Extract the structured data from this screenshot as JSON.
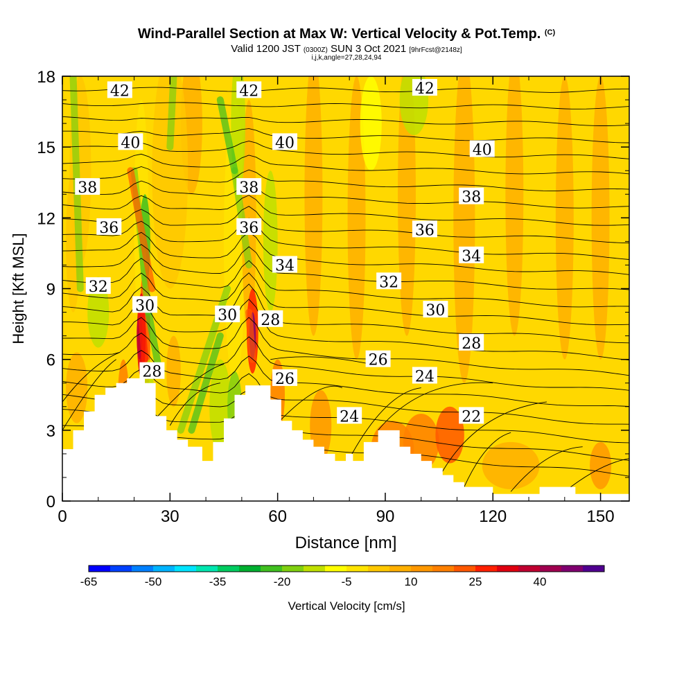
{
  "header": {
    "title": "Wind-Parallel Section at Max W: Vertical Velocity & Pot.Temp.",
    "copyright": "(C)",
    "valid_prefix": "Valid 1200 JST",
    "valid_utc": "(0300Z)",
    "valid_date": "SUN 3 Oct 2021",
    "forecast": "[9hrFcst@2148z]",
    "grid_info": "i,j,k,angle=27,28,24,94"
  },
  "chart_data": {
    "type": "heatmap",
    "xlabel": "Distance [nm]",
    "ylabel": "Height [Kft MSL]",
    "xlim": [
      0,
      158
    ],
    "ylim": [
      0,
      18
    ],
    "x_ticks": [
      0,
      30,
      60,
      90,
      120,
      150
    ],
    "y_ticks": [
      0,
      3,
      6,
      9,
      12,
      15,
      18
    ],
    "terrain_kft": [
      [
        0,
        2.2
      ],
      [
        3,
        2.2
      ],
      [
        3,
        3.0
      ],
      [
        6,
        3.0
      ],
      [
        6,
        3.8
      ],
      [
        9,
        3.8
      ],
      [
        9,
        4.5
      ],
      [
        12,
        4.5
      ],
      [
        12,
        4.8
      ],
      [
        15,
        4.8
      ],
      [
        15,
        5.0
      ],
      [
        18,
        5.0
      ],
      [
        18,
        5.2
      ],
      [
        23,
        5.2
      ],
      [
        23,
        5.0
      ],
      [
        26,
        5.0
      ],
      [
        26,
        3.6
      ],
      [
        29,
        3.6
      ],
      [
        29,
        3.0
      ],
      [
        32,
        3.0
      ],
      [
        32,
        2.6
      ],
      [
        35,
        2.6
      ],
      [
        35,
        2.3
      ],
      [
        39,
        2.3
      ],
      [
        39,
        1.7
      ],
      [
        42,
        1.7
      ],
      [
        42,
        2.5
      ],
      [
        45,
        2.5
      ],
      [
        45,
        3.5
      ],
      [
        48,
        3.5
      ],
      [
        48,
        4.5
      ],
      [
        51,
        4.5
      ],
      [
        51,
        4.9
      ],
      [
        58,
        4.9
      ],
      [
        58,
        4.3
      ],
      [
        61,
        4.3
      ],
      [
        61,
        3.4
      ],
      [
        64,
        3.4
      ],
      [
        64,
        3.0
      ],
      [
        67,
        3.0
      ],
      [
        67,
        2.6
      ],
      [
        70,
        2.6
      ],
      [
        70,
        2.3
      ],
      [
        73,
        2.3
      ],
      [
        73,
        2.0
      ],
      [
        76,
        2.0
      ],
      [
        76,
        1.7
      ],
      [
        79,
        1.7
      ],
      [
        79,
        2.0
      ],
      [
        81,
        2.0
      ],
      [
        81,
        1.7
      ],
      [
        84,
        1.7
      ],
      [
        84,
        2.5
      ],
      [
        88,
        2.5
      ],
      [
        88,
        3.0
      ],
      [
        94,
        3.0
      ],
      [
        94,
        2.3
      ],
      [
        97,
        2.3
      ],
      [
        97,
        2.0
      ],
      [
        100,
        2.0
      ],
      [
        100,
        1.7
      ],
      [
        103,
        1.7
      ],
      [
        103,
        1.4
      ],
      [
        106,
        1.4
      ],
      [
        106,
        1.1
      ],
      [
        109,
        1.1
      ],
      [
        109,
        0.8
      ],
      [
        112,
        0.8
      ],
      [
        112,
        0.6
      ],
      [
        120,
        0.6
      ],
      [
        120,
        0.3
      ],
      [
        133,
        0.3
      ],
      [
        133,
        0.6
      ],
      [
        143,
        0.6
      ],
      [
        143,
        0.3
      ],
      [
        158,
        0.3
      ]
    ],
    "theta_contour_labels": [
      {
        "label": "42",
        "x": 16,
        "y": 17.4
      },
      {
        "label": "42",
        "x": 52,
        "y": 17.4
      },
      {
        "label": "42",
        "x": 101,
        "y": 17.5
      },
      {
        "label": "40",
        "x": 19,
        "y": 15.2
      },
      {
        "label": "40",
        "x": 62,
        "y": 15.2
      },
      {
        "label": "40",
        "x": 117,
        "y": 14.9
      },
      {
        "label": "38",
        "x": 7,
        "y": 13.3
      },
      {
        "label": "38",
        "x": 52,
        "y": 13.3
      },
      {
        "label": "38",
        "x": 114,
        "y": 12.9
      },
      {
        "label": "36",
        "x": 13,
        "y": 11.6
      },
      {
        "label": "36",
        "x": 52,
        "y": 11.6
      },
      {
        "label": "36",
        "x": 101,
        "y": 11.5
      },
      {
        "label": "34",
        "x": 62,
        "y": 10.0
      },
      {
        "label": "34",
        "x": 114,
        "y": 10.4
      },
      {
        "label": "32",
        "x": 10,
        "y": 9.1
      },
      {
        "label": "32",
        "x": 91,
        "y": 9.3
      },
      {
        "label": "30",
        "x": 23,
        "y": 8.3
      },
      {
        "label": "30",
        "x": 46,
        "y": 7.9
      },
      {
        "label": "30",
        "x": 104,
        "y": 8.1
      },
      {
        "label": "28",
        "x": 58,
        "y": 7.7
      },
      {
        "label": "28",
        "x": 25,
        "y": 5.5
      },
      {
        "label": "28",
        "x": 114,
        "y": 6.7
      },
      {
        "label": "26",
        "x": 62,
        "y": 5.2
      },
      {
        "label": "26",
        "x": 88,
        "y": 6.0
      },
      {
        "label": "24",
        "x": 80,
        "y": 3.6
      },
      {
        "label": "24",
        "x": 101,
        "y": 5.3
      },
      {
        "label": "22",
        "x": 114,
        "y": 3.6
      }
    ],
    "colorbar": {
      "label": "Vertical Velocity [cm/s]",
      "tick_labels": [
        "-65",
        "-50",
        "-35",
        "-20",
        "-5",
        "10",
        "25",
        "40"
      ],
      "colors": [
        "#0000ff",
        "#0040ff",
        "#0080ff",
        "#00b4ff",
        "#00e4ff",
        "#00e6b0",
        "#00cc60",
        "#00b030",
        "#40c020",
        "#80d010",
        "#c0e000",
        "#ffff00",
        "#ffe400",
        "#ffc800",
        "#ffb000",
        "#ff9800",
        "#ff8000",
        "#ff5800",
        "#ff2000",
        "#e00010",
        "#c00030",
        "#a00050",
        "#800070",
        "#500090"
      ]
    },
    "background_color": "#ffd800"
  }
}
